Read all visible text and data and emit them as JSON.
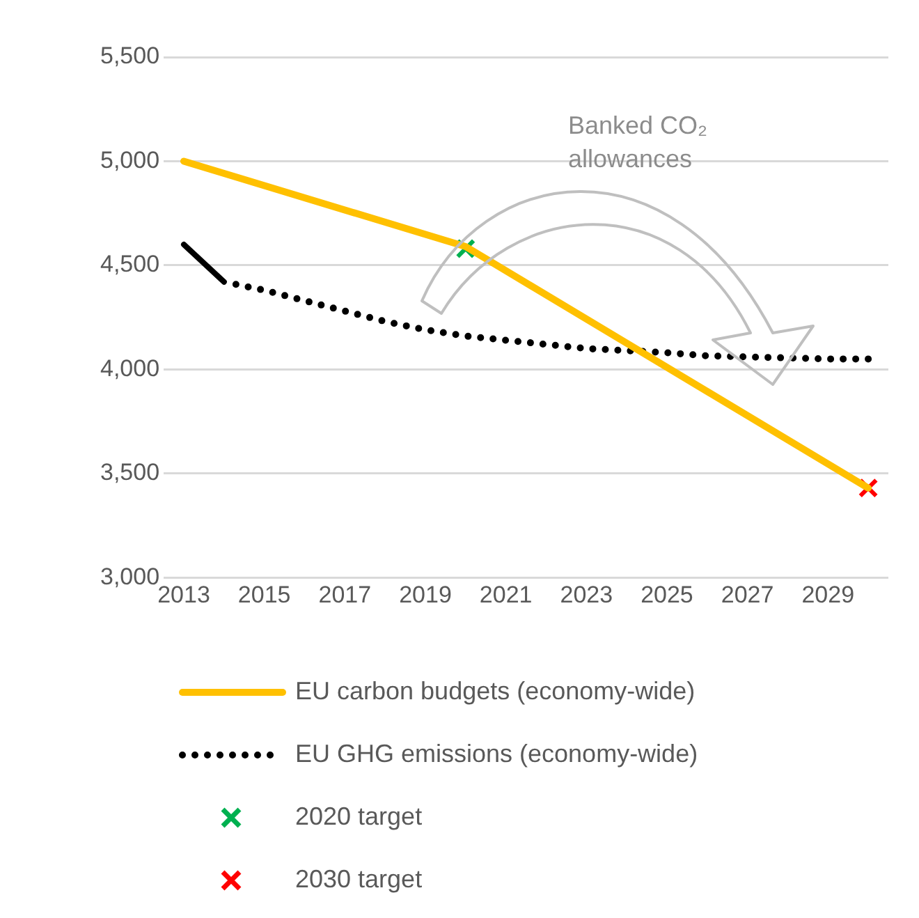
{
  "chart_data": {
    "type": "line",
    "annotations": [
      "Banked CO₂ allowances"
    ],
    "xlim": [
      2012.5,
      2030.5
    ],
    "xticks": [
      2013,
      2015,
      2017,
      2019,
      2021,
      2023,
      2025,
      2027,
      2029
    ],
    "ylim": [
      3000,
      5500
    ],
    "yticks": [
      {
        "value": 3000,
        "label": "3,000"
      },
      {
        "value": 3500,
        "label": "3,500"
      },
      {
        "value": 4000,
        "label": "4,000"
      },
      {
        "value": 4500,
        "label": "4,500"
      },
      {
        "value": 5000,
        "label": "5,000"
      },
      {
        "value": 5500,
        "label": "5,500"
      }
    ],
    "grid": "y",
    "legend": "bottom",
    "series": [
      {
        "name": "EU carbon budgets (economy-wide)",
        "color": "#ffc000",
        "line_style": "solid",
        "marker": "none",
        "x": [
          2013,
          2020,
          2030
        ],
        "values": [
          5000,
          4590,
          3430
        ]
      },
      {
        "color": "#000000",
        "line_style": "solid",
        "marker": "none",
        "x": [
          2013,
          2014
        ],
        "values": [
          4600,
          4420
        ]
      },
      {
        "name": "EU GHG emissions (economy-wide)",
        "color": "#000000",
        "line_style": "dotted",
        "marker": "none",
        "x": [
          2014,
          2015,
          2016,
          2017,
          2018,
          2019,
          2020,
          2021,
          2022,
          2023,
          2024,
          2025,
          2026,
          2027,
          2028,
          2029,
          2030
        ],
        "values": [
          4420,
          4380,
          4330,
          4280,
          4230,
          4190,
          4160,
          4140,
          4120,
          4100,
          4090,
          4080,
          4065,
          4060,
          4055,
          4050,
          4050
        ]
      },
      {
        "name": "2020 target",
        "type": "scatter",
        "color": "#00b050",
        "marker": "cross",
        "x": [
          2020
        ],
        "values": [
          4580
        ]
      },
      {
        "name": "2030 target",
        "type": "scatter",
        "color": "#ff0000",
        "marker": "cross",
        "x": [
          2030
        ],
        "values": [
          3430
        ]
      }
    ]
  }
}
